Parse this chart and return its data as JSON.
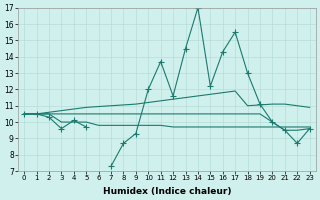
{
  "xlabel": "Humidex (Indice chaleur)",
  "x": [
    0,
    1,
    2,
    3,
    4,
    5,
    6,
    7,
    8,
    9,
    10,
    11,
    12,
    13,
    14,
    15,
    16,
    17,
    18,
    19,
    20,
    21,
    22,
    23
  ],
  "main_line": [
    10.5,
    10.5,
    10.3,
    9.6,
    10.1,
    9.7,
    null,
    7.3,
    8.7,
    9.3,
    12.0,
    13.7,
    11.6,
    14.5,
    17.0,
    12.2,
    14.3,
    15.5,
    13.0,
    11.1,
    10.0,
    9.5,
    8.7,
    9.6
  ],
  "smooth_upper": [
    10.5,
    10.5,
    10.6,
    10.7,
    10.8,
    10.9,
    10.95,
    11.0,
    11.05,
    11.1,
    11.2,
    11.3,
    11.4,
    11.5,
    11.6,
    11.7,
    11.8,
    11.9,
    11.0,
    11.05,
    11.1,
    11.1,
    11.0,
    10.9
  ],
  "flat_upper": [
    10.5,
    10.5,
    10.5,
    10.5,
    10.5,
    10.5,
    10.5,
    10.5,
    10.5,
    10.5,
    10.5,
    10.5,
    10.5,
    10.5,
    10.5,
    10.5,
    10.5,
    10.5,
    10.5,
    10.5,
    10.0,
    9.5,
    9.5,
    9.6
  ],
  "flat_lower": [
    10.5,
    10.5,
    10.5,
    10.0,
    10.0,
    10.0,
    9.8,
    9.8,
    9.8,
    9.8,
    9.8,
    9.8,
    9.7,
    9.7,
    9.7,
    9.7,
    9.7,
    9.7,
    9.7,
    9.7,
    9.7,
    9.7,
    9.7,
    9.7
  ],
  "ylim": [
    7,
    17
  ],
  "yticks": [
    7,
    8,
    9,
    10,
    11,
    12,
    13,
    14,
    15,
    16,
    17
  ],
  "color": "#1a7a6e",
  "bg_color": "#cff0ec",
  "grid_color": "#b8ddd8"
}
